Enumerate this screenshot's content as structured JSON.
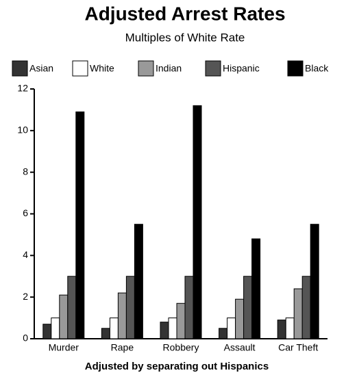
{
  "chart_data": {
    "type": "bar",
    "title": "Adjusted Arrest Rates",
    "subtitle": "Multiples of White Rate",
    "x_label": "Adjusted by separating out Hispanics",
    "categories": [
      "Murder",
      "Rape",
      "Robbery",
      "Assault",
      "Car Theft"
    ],
    "series": [
      {
        "name": "Asian",
        "color": "#333333",
        "values": [
          0.7,
          0.5,
          0.8,
          0.5,
          0.9
        ]
      },
      {
        "name": "White",
        "color": "#ffffff",
        "values": [
          1.0,
          1.0,
          1.0,
          1.0,
          1.0
        ]
      },
      {
        "name": "Indian",
        "color": "#999999",
        "values": [
          2.1,
          2.2,
          1.7,
          1.9,
          2.4
        ]
      },
      {
        "name": "Hispanic",
        "color": "#555555",
        "values": [
          3.0,
          3.0,
          3.0,
          3.0,
          3.0
        ]
      },
      {
        "name": "Black",
        "color": "#000000",
        "values": [
          10.9,
          5.5,
          11.2,
          4.8,
          5.5
        ]
      }
    ],
    "ylim": [
      0,
      12
    ],
    "yticks": [
      0,
      2,
      4,
      6,
      8,
      10,
      12
    ],
    "grid": false
  }
}
